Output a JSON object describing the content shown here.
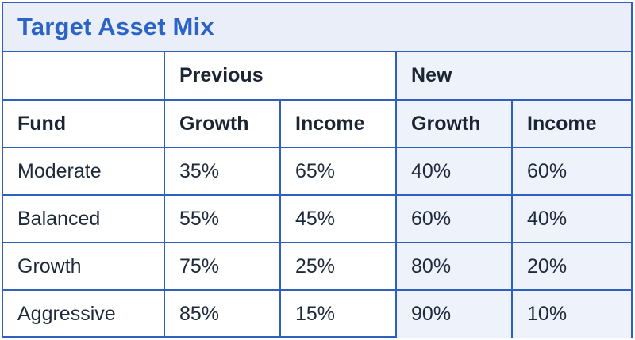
{
  "title": "Target Asset Mix",
  "group_headers": {
    "previous": "Previous",
    "new": "New"
  },
  "column_headers": {
    "fund": "Fund",
    "prev_growth": "Growth",
    "prev_income": "Income",
    "new_growth": "Growth",
    "new_income": "Income"
  },
  "rows": [
    {
      "fund": "Moderate",
      "prev_growth": "35%",
      "prev_income": "65%",
      "new_growth": "40%",
      "new_income": "60%"
    },
    {
      "fund": "Balanced",
      "prev_growth": "55%",
      "prev_income": "45%",
      "new_growth": "60%",
      "new_income": "40%"
    },
    {
      "fund": "Growth",
      "prev_growth": "75%",
      "prev_income": "25%",
      "new_growth": "80%",
      "new_income": "20%"
    },
    {
      "fund": "Aggressive",
      "prev_growth": "85%",
      "prev_income": "15%",
      "new_growth": "90%",
      "new_income": "10%"
    }
  ],
  "colors": {
    "border": "#2f5fbf",
    "title": "#2c63c6",
    "title_background": "#e9eef9",
    "new_column_background": "#eef2fb"
  }
}
